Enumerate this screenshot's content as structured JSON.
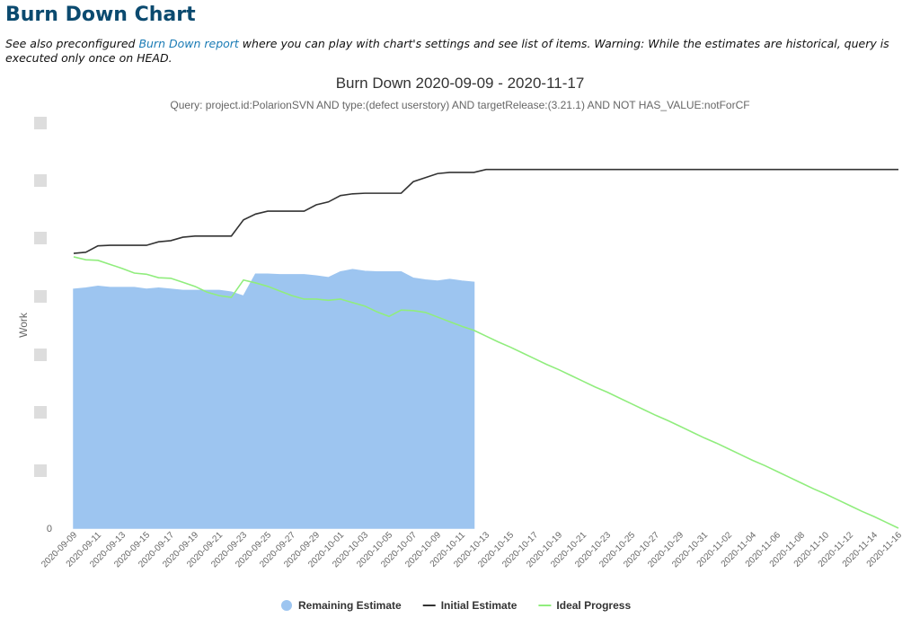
{
  "header": {
    "title": "Burn Down Chart",
    "description": {
      "before": "See also preconfigured ",
      "link": "Burn Down report",
      "after": " where you can play with chart's settings and see list of items. Warning: While the estimates are historical, query is executed only once on HEAD."
    }
  },
  "chart_data": {
    "type": "line",
    "title": "Burn Down 2020-09-09 - 2020-11-17",
    "subtitle": "Query: project.id:PolarionSVN AND type:(defect userstory) AND targetRelease:(3.21.1) AND NOT HAS_VALUE:notForCF",
    "y_label": "Work",
    "categories": [
      "2020-09-09",
      null,
      "2020-09-11",
      null,
      "2020-09-13",
      null,
      "2020-09-15",
      null,
      "2020-09-17",
      null,
      "2020-09-19",
      null,
      "2020-09-21",
      null,
      "2020-09-23",
      null,
      "2020-09-25",
      null,
      "2020-09-27",
      null,
      "2020-09-29",
      null,
      "2020-10-01",
      null,
      "2020-10-03",
      null,
      "2020-10-05",
      null,
      "2020-10-07",
      null,
      "2020-10-09",
      null,
      "2020-10-11",
      null,
      "2020-10-13",
      null,
      "2020-10-15",
      null,
      "2020-10-17",
      null,
      "2020-10-19",
      null,
      "2020-10-21",
      null,
      "2020-10-23",
      null,
      "2020-10-25",
      null,
      "2020-10-27",
      null,
      "2020-10-29",
      null,
      "2020-10-31",
      null,
      "2020-11-02",
      null,
      "2020-11-04",
      null,
      "2020-11-06",
      null,
      "2020-11-08",
      null,
      "2020-11-10",
      null,
      "2020-11-12",
      null,
      "2020-11-14",
      null,
      "2020-11-16"
    ],
    "series": [
      {
        "name": "Remaining Estimate",
        "kind": "area",
        "color": "#9dc5f0",
        "values": [
          4.13,
          4.15,
          4.18,
          4.16,
          4.16,
          4.16,
          4.13,
          4.15,
          4.13,
          4.11,
          4.11,
          4.11,
          4.11,
          4.08,
          4.01,
          4.39,
          4.39,
          4.38,
          4.38,
          4.38,
          4.36,
          4.33,
          4.43,
          4.47,
          4.44,
          4.43,
          4.43,
          4.43,
          4.32,
          4.29,
          4.27,
          4.3,
          4.27,
          4.25,
          null,
          null,
          null,
          null,
          null,
          null,
          null,
          null,
          null,
          null,
          null,
          null,
          null,
          null,
          null,
          null,
          null,
          null,
          null,
          null,
          null,
          null,
          null,
          null,
          null,
          null,
          null,
          null,
          null,
          null,
          null,
          null,
          null,
          null,
          null
        ]
      },
      {
        "name": "Initial Estimate",
        "kind": "line",
        "color": "#333333",
        "values": [
          4.75,
          4.77,
          4.88,
          4.89,
          4.89,
          4.89,
          4.89,
          4.95,
          4.97,
          5.03,
          5.05,
          5.05,
          5.05,
          5.05,
          5.33,
          5.43,
          5.48,
          5.48,
          5.48,
          5.48,
          5.59,
          5.64,
          5.75,
          5.78,
          5.79,
          5.79,
          5.79,
          5.79,
          5.99,
          6.06,
          6.13,
          6.15,
          6.15,
          6.15,
          6.2,
          6.2,
          6.2,
          6.2,
          6.2,
          6.2,
          6.2,
          6.2,
          6.2,
          6.2,
          6.2,
          6.2,
          6.2,
          6.2,
          6.2,
          6.2,
          6.2,
          6.2,
          6.2,
          6.2,
          6.2,
          6.2,
          6.2,
          6.2,
          6.2,
          6.2,
          6.2,
          6.2,
          6.2,
          6.2,
          6.2,
          6.2,
          6.2,
          6.2,
          6.2
        ]
      },
      {
        "name": "Ideal Progress",
        "kind": "line",
        "color": "#90ed7d",
        "values": [
          4.69,
          4.64,
          4.63,
          4.56,
          4.49,
          4.41,
          4.39,
          4.33,
          4.32,
          4.25,
          4.18,
          4.08,
          4.02,
          3.99,
          4.29,
          4.24,
          4.18,
          4.1,
          4.02,
          3.96,
          3.96,
          3.94,
          3.96,
          3.9,
          3.84,
          3.74,
          3.66,
          3.77,
          3.76,
          3.73,
          3.65,
          3.57,
          3.49,
          3.42,
          3.32,
          3.22,
          3.13,
          3.03,
          2.93,
          2.83,
          2.74,
          2.64,
          2.54,
          2.44,
          2.35,
          2.25,
          2.15,
          2.05,
          1.95,
          1.86,
          1.76,
          1.66,
          1.56,
          1.47,
          1.37,
          1.27,
          1.17,
          1.08,
          0.98,
          0.88,
          0.78,
          0.68,
          0.59,
          0.49,
          0.39,
          0.29,
          0.2,
          0.1,
          0
        ]
      }
    ],
    "ylim": [
      0,
      7
    ],
    "yticks": [
      0
    ]
  }
}
